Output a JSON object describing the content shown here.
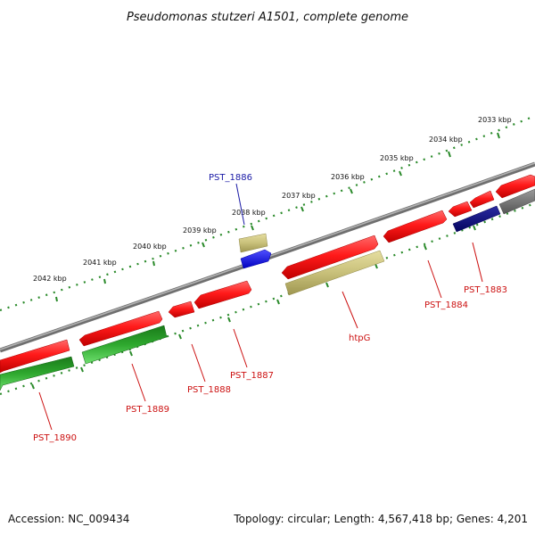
{
  "title": "Pseudomonas stutzeri A1501, complete genome",
  "footer": {
    "accession": "Accession: NC_009434",
    "topology": "Topology: circular; Length: 4,567,418 bp; Genes: 4,201"
  },
  "kbp_labels": [
    "2042 kbp",
    "2041 kbp",
    "2040 kbp",
    "2039 kbp",
    "2038 kbp",
    "2037 kbp",
    "2036 kbp",
    "2035 kbp",
    "2034 kbp",
    "2033 kbp"
  ],
  "gene_labels": [
    {
      "text": "PST_1886",
      "color": "#1a1aa6"
    },
    {
      "text": "htpG",
      "color": "#cc1111"
    },
    {
      "text": "PST_1884",
      "color": "#cc1111"
    },
    {
      "text": "PST_1883",
      "color": "#cc1111"
    },
    {
      "text": "PST_1887",
      "color": "#cc1111"
    },
    {
      "text": "PST_1888",
      "color": "#cc1111"
    },
    {
      "text": "PST_1889",
      "color": "#cc1111"
    },
    {
      "text": "PST_1890",
      "color": "#cc1111"
    }
  ],
  "colors": {
    "cds_red": "#ff1a1a",
    "cds_green": "#22b022",
    "cds_khaki": "#c8c07a",
    "cds_blue": "#1010ee",
    "cds_navy": "#0b0b80",
    "cds_gray": "#707070",
    "backbone": "#8a8a8a",
    "tick_green": "#2a8a2a"
  }
}
